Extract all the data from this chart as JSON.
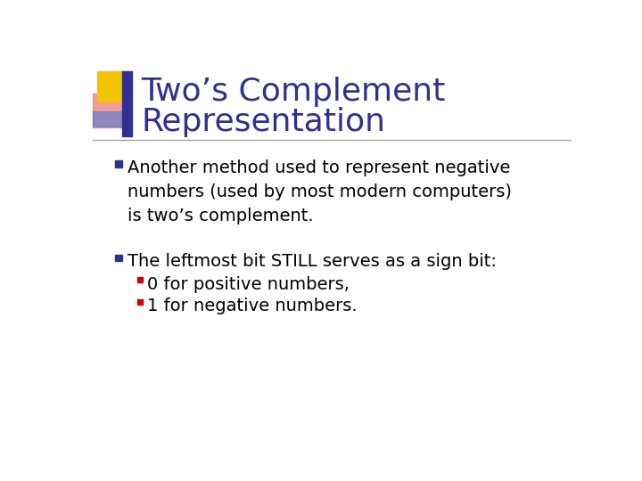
{
  "title_line1": "Two’s Complement",
  "title_line2": "Representation",
  "title_color": "#2E3191",
  "title_fontsize": 26,
  "background_color": "#FFFFFF",
  "separator_color": "#999999",
  "bullet1_text": "Another method used to represent negative\nnumbers (used by most modern computers)\nis two’s complement.",
  "bullet2_text": "The leftmost bit STILL serves as a sign bit:",
  "sub_bullet1": "0 for positive numbers,",
  "sub_bullet2": "1 for negative numbers.",
  "bullet_color": "#2E3191",
  "sub_bullet_color": "#CC0000",
  "body_fontsize": 14,
  "body_color": "#000000",
  "decor_yellow": "#F5C400",
  "decor_blue": "#2E3191",
  "decor_red": "#CC2222",
  "decor_pink": "#EE6666",
  "decor_lightblue": "#6680CC"
}
